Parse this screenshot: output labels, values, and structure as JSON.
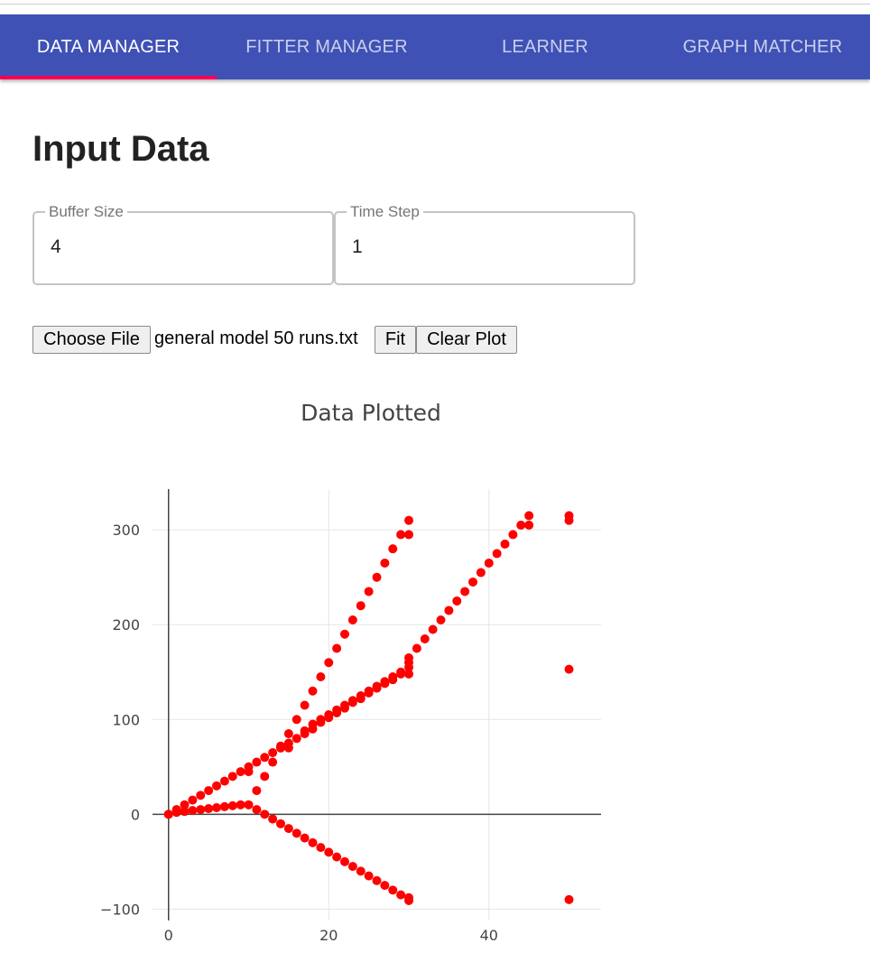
{
  "tabs": [
    {
      "label": "DATA MANAGER",
      "active": true
    },
    {
      "label": "FITTER MANAGER",
      "active": false
    },
    {
      "label": "LEARNER",
      "active": false
    },
    {
      "label": "GRAPH MATCHER",
      "active": false
    }
  ],
  "colors": {
    "appbar": "#3f51b5",
    "indicator": "#f50057",
    "points": "#ff0000"
  },
  "page_title": "Input Data",
  "fields": {
    "buffer_size": {
      "label": "Buffer Size",
      "value": "4"
    },
    "time_step": {
      "label": "Time Step",
      "value": "1"
    }
  },
  "file": {
    "choose_label": "Choose File",
    "file_name": "general model 50 runs.txt"
  },
  "actions": {
    "fit_label": "Fit",
    "clear_label": "Clear Plot"
  },
  "chart_data": {
    "type": "scatter",
    "title": "Data Plotted",
    "xlabel": "",
    "ylabel": "",
    "xlim": [
      -2,
      54
    ],
    "ylim": [
      -112,
      343
    ],
    "x_ticks": [
      0,
      20,
      40
    ],
    "y_ticks": [
      -100,
      0,
      100,
      200,
      300
    ],
    "x_tick_labels": [
      "0",
      "20",
      "40"
    ],
    "y_tick_labels": [
      "−100",
      "0",
      "100",
      "200",
      "300"
    ],
    "grid": true,
    "series": [
      {
        "color": "#ff0000",
        "points": [
          [
            0,
            0
          ],
          [
            1,
            5
          ],
          [
            2,
            10
          ],
          [
            3,
            15
          ],
          [
            4,
            20
          ],
          [
            5,
            25
          ],
          [
            6,
            30
          ],
          [
            7,
            35
          ],
          [
            8,
            40
          ],
          [
            9,
            45
          ],
          [
            10,
            50
          ],
          [
            11,
            55
          ],
          [
            12,
            60
          ],
          [
            13,
            65
          ],
          [
            14,
            70
          ],
          [
            15,
            75
          ],
          [
            16,
            80
          ],
          [
            17,
            88
          ],
          [
            18,
            95
          ],
          [
            19,
            100
          ],
          [
            20,
            105
          ],
          [
            21,
            110
          ],
          [
            22,
            115
          ],
          [
            23,
            120
          ],
          [
            24,
            125
          ],
          [
            25,
            130
          ],
          [
            26,
            135
          ],
          [
            27,
            140
          ],
          [
            28,
            145
          ],
          [
            29,
            150
          ],
          [
            30,
            155
          ],
          [
            0,
            0
          ],
          [
            1,
            2
          ],
          [
            2,
            3
          ],
          [
            3,
            4
          ],
          [
            4,
            5
          ],
          [
            5,
            6
          ],
          [
            6,
            7
          ],
          [
            7,
            8
          ],
          [
            8,
            9
          ],
          [
            9,
            10
          ],
          [
            10,
            10
          ],
          [
            11,
            5
          ],
          [
            12,
            0
          ],
          [
            13,
            -5
          ],
          [
            14,
            -10
          ],
          [
            15,
            -15
          ],
          [
            16,
            -20
          ],
          [
            17,
            -25
          ],
          [
            18,
            -30
          ],
          [
            19,
            -35
          ],
          [
            20,
            -40
          ],
          [
            21,
            -45
          ],
          [
            22,
            -50
          ],
          [
            23,
            -55
          ],
          [
            24,
            -60
          ],
          [
            25,
            -65
          ],
          [
            26,
            -70
          ],
          [
            27,
            -75
          ],
          [
            28,
            -80
          ],
          [
            29,
            -85
          ],
          [
            30,
            -88
          ],
          [
            30,
            -91
          ],
          [
            11,
            25
          ],
          [
            12,
            40
          ],
          [
            13,
            55
          ],
          [
            14,
            70
          ],
          [
            15,
            85
          ],
          [
            16,
            100
          ],
          [
            17,
            115
          ],
          [
            18,
            130
          ],
          [
            19,
            145
          ],
          [
            20,
            160
          ],
          [
            21,
            175
          ],
          [
            22,
            190
          ],
          [
            23,
            205
          ],
          [
            24,
            220
          ],
          [
            25,
            235
          ],
          [
            26,
            250
          ],
          [
            27,
            265
          ],
          [
            28,
            280
          ],
          [
            29,
            295
          ],
          [
            30,
            295
          ],
          [
            30,
            310
          ],
          [
            10,
            45
          ],
          [
            14,
            72
          ],
          [
            15,
            70
          ],
          [
            17,
            85
          ],
          [
            18,
            90
          ],
          [
            19,
            97
          ],
          [
            20,
            102
          ],
          [
            21,
            107
          ],
          [
            22,
            112
          ],
          [
            23,
            118
          ],
          [
            24,
            122
          ],
          [
            25,
            128
          ],
          [
            26,
            133
          ],
          [
            27,
            138
          ],
          [
            28,
            142
          ],
          [
            29,
            148
          ],
          [
            30,
            148
          ],
          [
            30,
            160
          ],
          [
            30,
            165
          ],
          [
            31,
            175
          ],
          [
            32,
            185
          ],
          [
            33,
            195
          ],
          [
            34,
            205
          ],
          [
            35,
            215
          ],
          [
            36,
            225
          ],
          [
            37,
            235
          ],
          [
            38,
            245
          ],
          [
            39,
            255
          ],
          [
            40,
            265
          ],
          [
            41,
            275
          ],
          [
            42,
            285
          ],
          [
            43,
            295
          ],
          [
            44,
            305
          ],
          [
            45,
            305
          ],
          [
            45,
            315
          ],
          [
            50,
            315
          ],
          [
            50,
            310
          ],
          [
            50,
            153
          ],
          [
            50,
            -90
          ]
        ]
      }
    ]
  }
}
